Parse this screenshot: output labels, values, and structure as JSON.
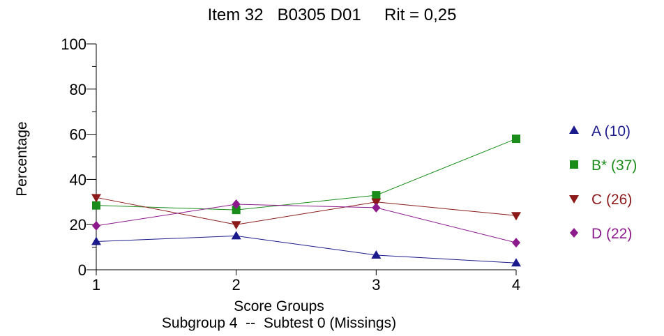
{
  "chart_data": {
    "type": "line",
    "title": "Item 32   B0305 D01     Rit = 0,25",
    "subtitle": "Subgroup 4  --  Subtest 0 (Missings)",
    "xlabel": "Score Groups",
    "ylabel": "Percentage",
    "categories": [
      "1",
      "2",
      "3",
      "4"
    ],
    "x": [
      1,
      2,
      3,
      4
    ],
    "xlim": [
      1,
      4
    ],
    "ylim": [
      0,
      100
    ],
    "yticks": [
      "0",
      "20",
      "40",
      "60",
      "80",
      "100"
    ],
    "grid": false,
    "legend_position": "right",
    "series": [
      {
        "name": "A",
        "legend_label": "A (10)",
        "marker": "triangle-up",
        "color": "#1a1a8c",
        "values": [
          12.5,
          15,
          6.5,
          3
        ]
      },
      {
        "name": "B*",
        "legend_label": "B* (37)",
        "marker": "square",
        "color": "#1a8c1a",
        "values": [
          28.5,
          26.5,
          33,
          58
        ]
      },
      {
        "name": "C",
        "legend_label": "C (26)",
        "marker": "triangle-down",
        "color": "#8c1a1a",
        "values": [
          32,
          20,
          30,
          24
        ]
      },
      {
        "name": "D",
        "legend_label": "D (22)",
        "marker": "diamond",
        "color": "#8c1a8c",
        "values": [
          19.5,
          29,
          27.5,
          12
        ]
      }
    ]
  }
}
